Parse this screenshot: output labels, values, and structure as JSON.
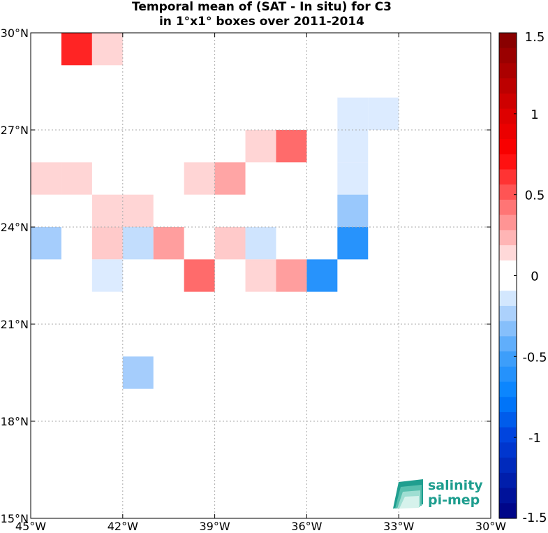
{
  "title": {
    "line1": "Temporal mean of (SAT - In situ) for C3",
    "line2": "in 1°x1° boxes over 2011-2014"
  },
  "chart_data": {
    "type": "heatmap",
    "xlim": [
      -45,
      -30
    ],
    "ylim": [
      15,
      30
    ],
    "grid": true,
    "x_ticks": [
      {
        "value": -45,
        "label": "45°W"
      },
      {
        "value": -42,
        "label": "42°W"
      },
      {
        "value": -39,
        "label": "39°W"
      },
      {
        "value": -36,
        "label": "36°W"
      },
      {
        "value": -33,
        "label": "33°W"
      },
      {
        "value": -30,
        "label": "30°W"
      }
    ],
    "y_ticks": [
      {
        "value": 15,
        "label": "15°N"
      },
      {
        "value": 18,
        "label": "18°N"
      },
      {
        "value": 21,
        "label": "21°N"
      },
      {
        "value": 24,
        "label": "24°N"
      },
      {
        "value": 27,
        "label": "27°N"
      },
      {
        "value": 30,
        "label": "30°N"
      }
    ],
    "colorbar": {
      "min": -1.5,
      "max": 1.5,
      "ticks": [
        "1.5",
        "1",
        "0.5",
        "0",
        "-0.5",
        "-1",
        "-1.5"
      ],
      "levels": 32,
      "placement": "right"
    },
    "cells": [
      {
        "lon": -44,
        "lat": 29,
        "value": 0.65
      },
      {
        "lon": -43,
        "lat": 29,
        "value": 0.15
      },
      {
        "lon": -35,
        "lat": 27,
        "value": -0.12
      },
      {
        "lon": -34,
        "lat": 27,
        "value": -0.12
      },
      {
        "lon": -38,
        "lat": 26,
        "value": 0.15
      },
      {
        "lon": -37,
        "lat": 26,
        "value": 0.45
      },
      {
        "lon": -35,
        "lat": 26,
        "value": -0.12
      },
      {
        "lon": -45,
        "lat": 25,
        "value": 0.15
      },
      {
        "lon": -44,
        "lat": 25,
        "value": 0.15
      },
      {
        "lon": -40,
        "lat": 25,
        "value": 0.15
      },
      {
        "lon": -39,
        "lat": 25,
        "value": 0.28
      },
      {
        "lon": -35,
        "lat": 25,
        "value": -0.12
      },
      {
        "lon": -43,
        "lat": 24,
        "value": 0.15
      },
      {
        "lon": -42,
        "lat": 24,
        "value": 0.15
      },
      {
        "lon": -35,
        "lat": 24,
        "value": -0.28
      },
      {
        "lon": -45,
        "lat": 23,
        "value": -0.25
      },
      {
        "lon": -43,
        "lat": 23,
        "value": 0.18
      },
      {
        "lon": -42,
        "lat": 23,
        "value": -0.18
      },
      {
        "lon": -41,
        "lat": 23,
        "value": 0.3
      },
      {
        "lon": -39,
        "lat": 23,
        "value": 0.18
      },
      {
        "lon": -38,
        "lat": 23,
        "value": -0.15
      },
      {
        "lon": -35,
        "lat": 23,
        "value": -0.6
      },
      {
        "lon": -43,
        "lat": 22,
        "value": -0.12
      },
      {
        "lon": -40,
        "lat": 22,
        "value": 0.45
      },
      {
        "lon": -38,
        "lat": 22,
        "value": 0.15
      },
      {
        "lon": -37,
        "lat": 22,
        "value": 0.3
      },
      {
        "lon": -36,
        "lat": 22,
        "value": -0.6
      },
      {
        "lon": -42,
        "lat": 19,
        "value": -0.25
      }
    ]
  },
  "logo": {
    "line1": "salinity",
    "line2": "pi-mep"
  }
}
